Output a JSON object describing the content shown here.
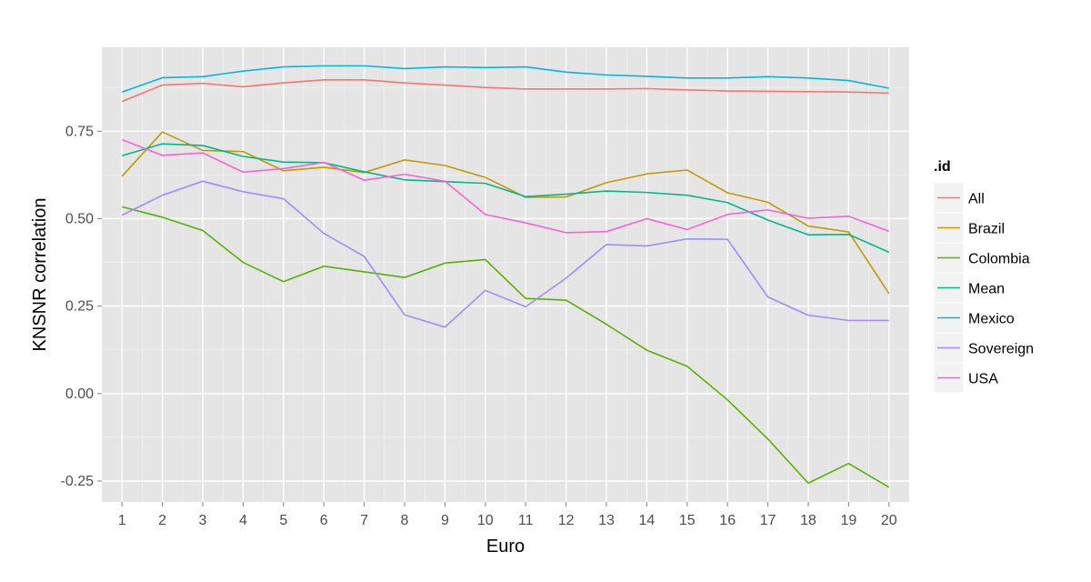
{
  "chart_data": {
    "type": "line",
    "title": "",
    "xlabel": "Euro",
    "ylabel": "KNSNR correlation",
    "x": [
      1,
      2,
      3,
      4,
      5,
      6,
      7,
      8,
      9,
      10,
      11,
      12,
      13,
      14,
      15,
      16,
      17,
      18,
      19,
      20
    ],
    "xlim": [
      0.5,
      20.5
    ],
    "ylim": [
      -0.31,
      0.99
    ],
    "y_ticks": [
      -0.25,
      0.0,
      0.25,
      0.5,
      0.75
    ],
    "y_tick_labels": [
      "-0.25",
      "0.00",
      "0.25",
      "0.50",
      "0.75"
    ],
    "grid": true,
    "legend": {
      "title": ".id",
      "position": "right"
    },
    "series": [
      {
        "name": "All",
        "color": "#F8766D",
        "values": [
          0.835,
          0.882,
          0.887,
          0.877,
          0.888,
          0.897,
          0.897,
          0.888,
          0.882,
          0.875,
          0.871,
          0.871,
          0.871,
          0.872,
          0.868,
          0.865,
          0.864,
          0.863,
          0.862,
          0.859
        ]
      },
      {
        "name": "Brazil",
        "color": "#C49A00",
        "values": [
          0.621,
          0.748,
          0.695,
          0.692,
          0.637,
          0.647,
          0.632,
          0.668,
          0.652,
          0.618,
          0.561,
          0.562,
          0.603,
          0.628,
          0.639,
          0.574,
          0.547,
          0.479,
          0.462,
          0.286
        ]
      },
      {
        "name": "Colombia",
        "color": "#53B400",
        "values": [
          0.534,
          0.504,
          0.466,
          0.375,
          0.32,
          0.364,
          0.348,
          0.332,
          0.373,
          0.383,
          0.272,
          0.267,
          0.198,
          0.124,
          0.078,
          -0.018,
          -0.13,
          -0.256,
          -0.2,
          -0.268
        ]
      },
      {
        "name": "Mean",
        "color": "#00B88A",
        "values": [
          0.68,
          0.714,
          0.709,
          0.678,
          0.662,
          0.66,
          0.634,
          0.611,
          0.606,
          0.601,
          0.563,
          0.57,
          0.579,
          0.575,
          0.567,
          0.546,
          0.496,
          0.454,
          0.455,
          0.404
        ]
      },
      {
        "name": "Mexico",
        "color": "#00B6EB",
        "values": [
          0.862,
          0.903,
          0.906,
          0.922,
          0.934,
          0.937,
          0.937,
          0.929,
          0.934,
          0.932,
          0.934,
          0.919,
          0.911,
          0.907,
          0.902,
          0.902,
          0.906,
          0.902,
          0.895,
          0.873
        ]
      },
      {
        "name": "Sovereign",
        "color": "#A58AFF",
        "values": [
          0.51,
          0.567,
          0.607,
          0.577,
          0.557,
          0.458,
          0.392,
          0.225,
          0.19,
          0.295,
          0.248,
          0.33,
          0.426,
          0.422,
          0.442,
          0.441,
          0.276,
          0.224,
          0.209,
          0.209
        ]
      },
      {
        "name": "USA",
        "color": "#FB61D7",
        "values": [
          0.726,
          0.681,
          0.688,
          0.633,
          0.643,
          0.661,
          0.61,
          0.627,
          0.607,
          0.512,
          0.488,
          0.46,
          0.463,
          0.5,
          0.469,
          0.512,
          0.525,
          0.501,
          0.507,
          0.464
        ]
      }
    ]
  }
}
